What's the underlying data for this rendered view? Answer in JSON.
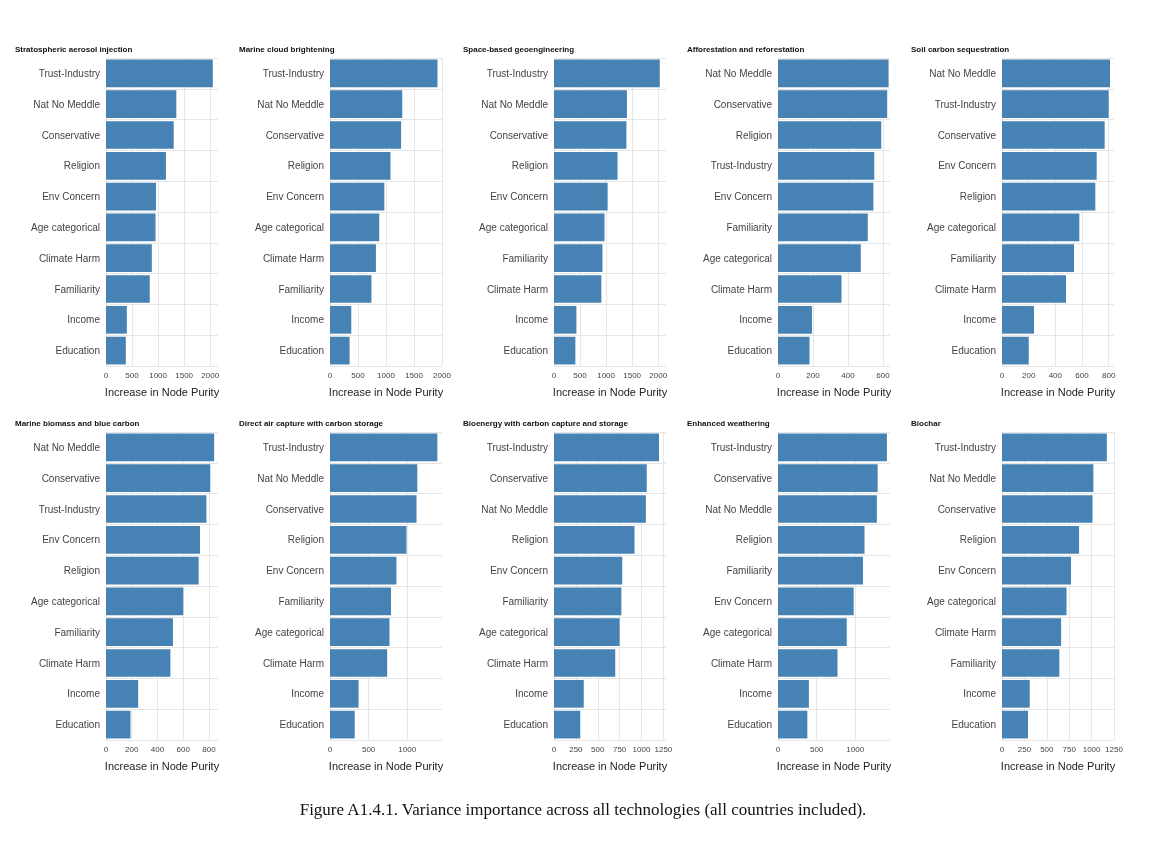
{
  "chart_data": [
    {
      "type": "bar",
      "orientation": "horizontal",
      "title": "Stratospheric aerosol injection",
      "xlabel": "Increase in Node Purity",
      "categories": [
        "Trust-Industry",
        "Nat No Meddle",
        "Conservative",
        "Religion",
        "Env Concern",
        "Age categorical",
        "Climate Harm",
        "Familiarity",
        "Income",
        "Education"
      ],
      "values": [
        2050,
        1350,
        1300,
        1150,
        960,
        950,
        880,
        840,
        400,
        380
      ],
      "color": "#4682b4",
      "xlim": [
        0,
        2150
      ],
      "xticks": [
        0,
        500,
        1000,
        1500,
        2000
      ],
      "grid": true
    },
    {
      "type": "bar",
      "orientation": "horizontal",
      "title": "Marine cloud brightening",
      "xlabel": "Increase in Node Purity",
      "categories": [
        "Trust-Industry",
        "Nat No Meddle",
        "Conservative",
        "Religion",
        "Env Concern",
        "Age categorical",
        "Climate Harm",
        "Familiarity",
        "Income",
        "Education"
      ],
      "values": [
        1920,
        1290,
        1270,
        1080,
        970,
        880,
        820,
        740,
        380,
        350
      ],
      "color": "#4682b4",
      "xlim": [
        0,
        2000
      ],
      "xticks": [
        0,
        500,
        1000,
        1500,
        2000
      ],
      "grid": true
    },
    {
      "type": "bar",
      "orientation": "horizontal",
      "title": "Space-based geoengineering",
      "xlabel": "Increase in Node Purity",
      "categories": [
        "Trust-Industry",
        "Nat No Meddle",
        "Conservative",
        "Religion",
        "Env Concern",
        "Age categorical",
        "Familiarity",
        "Climate Harm",
        "Income",
        "Education"
      ],
      "values": [
        2030,
        1400,
        1390,
        1220,
        1030,
        970,
        930,
        910,
        430,
        410
      ],
      "color": "#4682b4",
      "xlim": [
        0,
        2150
      ],
      "xticks": [
        0,
        500,
        1000,
        1500,
        2000
      ],
      "grid": true
    },
    {
      "type": "bar",
      "orientation": "horizontal",
      "title": "Afforestation and reforestation",
      "xlabel": "Increase in Node Purity",
      "categories": [
        "Nat No Meddle",
        "Conservative",
        "Religion",
        "Trust-Industry",
        "Env Concern",
        "Familiarity",
        "Age categorical",
        "Climate Harm",
        "Income",
        "Education"
      ],
      "values": [
        632,
        624,
        590,
        550,
        545,
        513,
        473,
        363,
        194,
        180
      ],
      "color": "#4682b4",
      "xlim": [
        0,
        640
      ],
      "xticks": [
        0,
        200,
        400,
        600
      ],
      "grid": true
    },
    {
      "type": "bar",
      "orientation": "horizontal",
      "title": "Soil carbon sequestration",
      "xlabel": "Increase in Node Purity",
      "categories": [
        "Nat No Meddle",
        "Trust-Industry",
        "Conservative",
        "Env Concern",
        "Religion",
        "Age categorical",
        "Familiarity",
        "Climate Harm",
        "Income",
        "Education"
      ],
      "values": [
        810,
        800,
        770,
        710,
        700,
        580,
        540,
        480,
        240,
        200
      ],
      "color": "#4682b4",
      "xlim": [
        0,
        840
      ],
      "xticks": [
        0,
        200,
        400,
        600,
        800
      ],
      "grid": true
    },
    {
      "type": "bar",
      "orientation": "horizontal",
      "title": "Marine biomass and blue carbon",
      "xlabel": "Increase in Node Purity",
      "categories": [
        "Nat No Meddle",
        "Conservative",
        "Trust-Industry",
        "Env Concern",
        "Religion",
        "Age categorical",
        "Familiarity",
        "Climate Harm",
        "Income",
        "Education"
      ],
      "values": [
        840,
        810,
        780,
        730,
        720,
        600,
        520,
        500,
        250,
        190
      ],
      "color": "#4682b4",
      "xlim": [
        0,
        870
      ],
      "xticks": [
        0,
        200,
        400,
        600,
        800
      ],
      "grid": true
    },
    {
      "type": "bar",
      "orientation": "horizontal",
      "title": "Direct air capture with carbon storage",
      "xlabel": "Increase in Node Purity",
      "categories": [
        "Trust-Industry",
        "Nat No Meddle",
        "Conservative",
        "Religion",
        "Env Concern",
        "Familiarity",
        "Age categorical",
        "Climate Harm",
        "Income",
        "Education"
      ],
      "values": [
        1390,
        1130,
        1120,
        990,
        860,
        790,
        770,
        740,
        370,
        320
      ],
      "color": "#4682b4",
      "xlim": [
        0,
        1450
      ],
      "xticks": [
        0,
        500,
        1000
      ],
      "grid": true
    },
    {
      "type": "bar",
      "orientation": "horizontal",
      "title": "Bioenergy with carbon capture and storage",
      "xlabel": "Increase in Node Purity",
      "categories": [
        "Trust-Industry",
        "Conservative",
        "Nat No Meddle",
        "Religion",
        "Env Concern",
        "Familiarity",
        "Age categorical",
        "Climate Harm",
        "Income",
        "Education"
      ],
      "values": [
        1200,
        1060,
        1050,
        920,
        780,
        770,
        750,
        700,
        340,
        300
      ],
      "color": "#4682b4",
      "xlim": [
        0,
        1280
      ],
      "xticks": [
        0,
        250,
        500,
        750,
        1000,
        1250
      ],
      "grid": true
    },
    {
      "type": "bar",
      "orientation": "horizontal",
      "title": "Enhanced weathering",
      "xlabel": "Increase in Node Purity",
      "categories": [
        "Trust-Industry",
        "Conservative",
        "Nat No Meddle",
        "Religion",
        "Familiarity",
        "Env Concern",
        "Age categorical",
        "Climate Harm",
        "Income",
        "Education"
      ],
      "values": [
        1410,
        1290,
        1280,
        1120,
        1100,
        980,
        890,
        770,
        400,
        380
      ],
      "color": "#4682b4",
      "xlim": [
        0,
        1450
      ],
      "xticks": [
        0,
        500,
        1000
      ],
      "grid": true
    },
    {
      "type": "bar",
      "orientation": "horizontal",
      "title": "Biochar",
      "xlabel": "Increase in Node Purity",
      "categories": [
        "Trust-Industry",
        "Nat No Meddle",
        "Conservative",
        "Religion",
        "Env Concern",
        "Age categorical",
        "Climate Harm",
        "Familiarity",
        "Income",
        "Education"
      ],
      "values": [
        1170,
        1020,
        1010,
        860,
        770,
        720,
        660,
        640,
        310,
        290
      ],
      "color": "#4682b4",
      "xlim": [
        0,
        1250
      ],
      "xticks": [
        0,
        250,
        500,
        750,
        1000,
        1250
      ],
      "grid": true,
      "annotations": [
        "Figure A1.4.1. Variance importance across all technologies (all countries included)."
      ]
    }
  ]
}
